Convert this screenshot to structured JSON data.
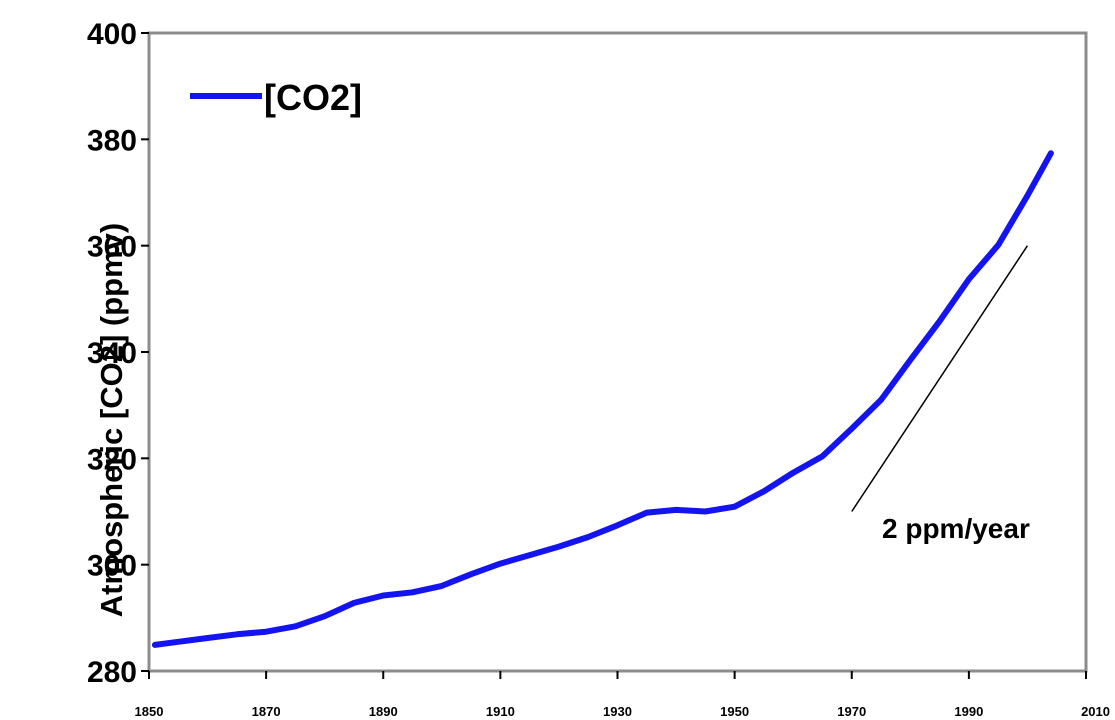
{
  "chart_data": {
    "type": "line",
    "title": "",
    "xlabel": "",
    "ylabel": "Atmospheric [CO2] (ppmv)",
    "xlim": [
      1850,
      2010
    ],
    "ylim": [
      280,
      400
    ],
    "x_ticks": [
      "1850",
      "1870",
      "1890",
      "1910",
      "1930",
      "1950",
      "1970",
      "1990",
      "2010"
    ],
    "y_ticks": [
      "400",
      "380",
      "360",
      "340",
      "320",
      "300",
      "280"
    ],
    "grid": false,
    "legend": {
      "position": "top-left",
      "entries": [
        "[CO2]"
      ]
    },
    "colors": {
      "series": "#1414f0",
      "frame": "#8c8c8c",
      "background": "#ffffff"
    },
    "series": [
      {
        "name": "[CO2]",
        "x": [
          1851,
          1855,
          1860,
          1865,
          1870,
          1875,
          1880,
          1885,
          1890,
          1895,
          1900,
          1905,
          1910,
          1915,
          1920,
          1925,
          1930,
          1935,
          1940,
          1945,
          1950,
          1955,
          1960,
          1965,
          1970,
          1975,
          1980,
          1985,
          1990,
          1995,
          2000,
          2004
        ],
        "y": [
          284.9,
          285.5,
          286.2,
          286.9,
          287.4,
          288.4,
          290.3,
          292.8,
          294.2,
          294.8,
          296.0,
          298.2,
          300.2,
          301.8,
          303.4,
          305.2,
          307.4,
          309.8,
          310.3,
          310.0,
          310.9,
          313.8,
          317.3,
          320.4,
          325.6,
          331.0,
          338.5,
          345.8,
          353.7,
          360.1,
          369.4,
          377.4
        ]
      }
    ],
    "annotations": [
      {
        "text": "2 ppm/year",
        "line_from": [
          1970,
          310
        ],
        "line_to": [
          2000,
          360
        ]
      }
    ]
  }
}
